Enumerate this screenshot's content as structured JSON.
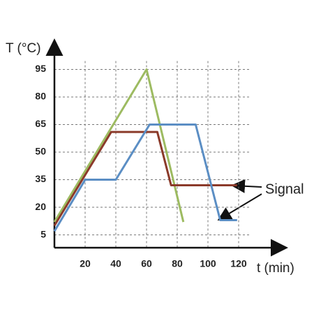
{
  "chart_data": {
    "type": "line",
    "ylabel": "T (°C)",
    "xlabel": "t (min)",
    "xlim": [
      0,
      150
    ],
    "ylim": [
      -2,
      110
    ],
    "xticks": [
      20,
      40,
      60,
      80,
      100,
      120
    ],
    "yticks": [
      5,
      20,
      35,
      50,
      65,
      80,
      95
    ],
    "grid": true,
    "series": [
      {
        "color": "#9dbb61",
        "x": [
          0,
          60,
          84
        ],
        "values": [
          12,
          95,
          12
        ]
      },
      {
        "color": "#8b3a2a",
        "x": [
          0,
          37,
          67,
          76,
          119
        ],
        "values": [
          10,
          61,
          61,
          32,
          32
        ]
      },
      {
        "color": "#5b8ec4",
        "x": [
          0,
          20,
          40,
          62,
          92,
          108,
          119
        ],
        "values": [
          7,
          35,
          35,
          65,
          65,
          13,
          13
        ]
      }
    ],
    "annotation": "Signal"
  }
}
